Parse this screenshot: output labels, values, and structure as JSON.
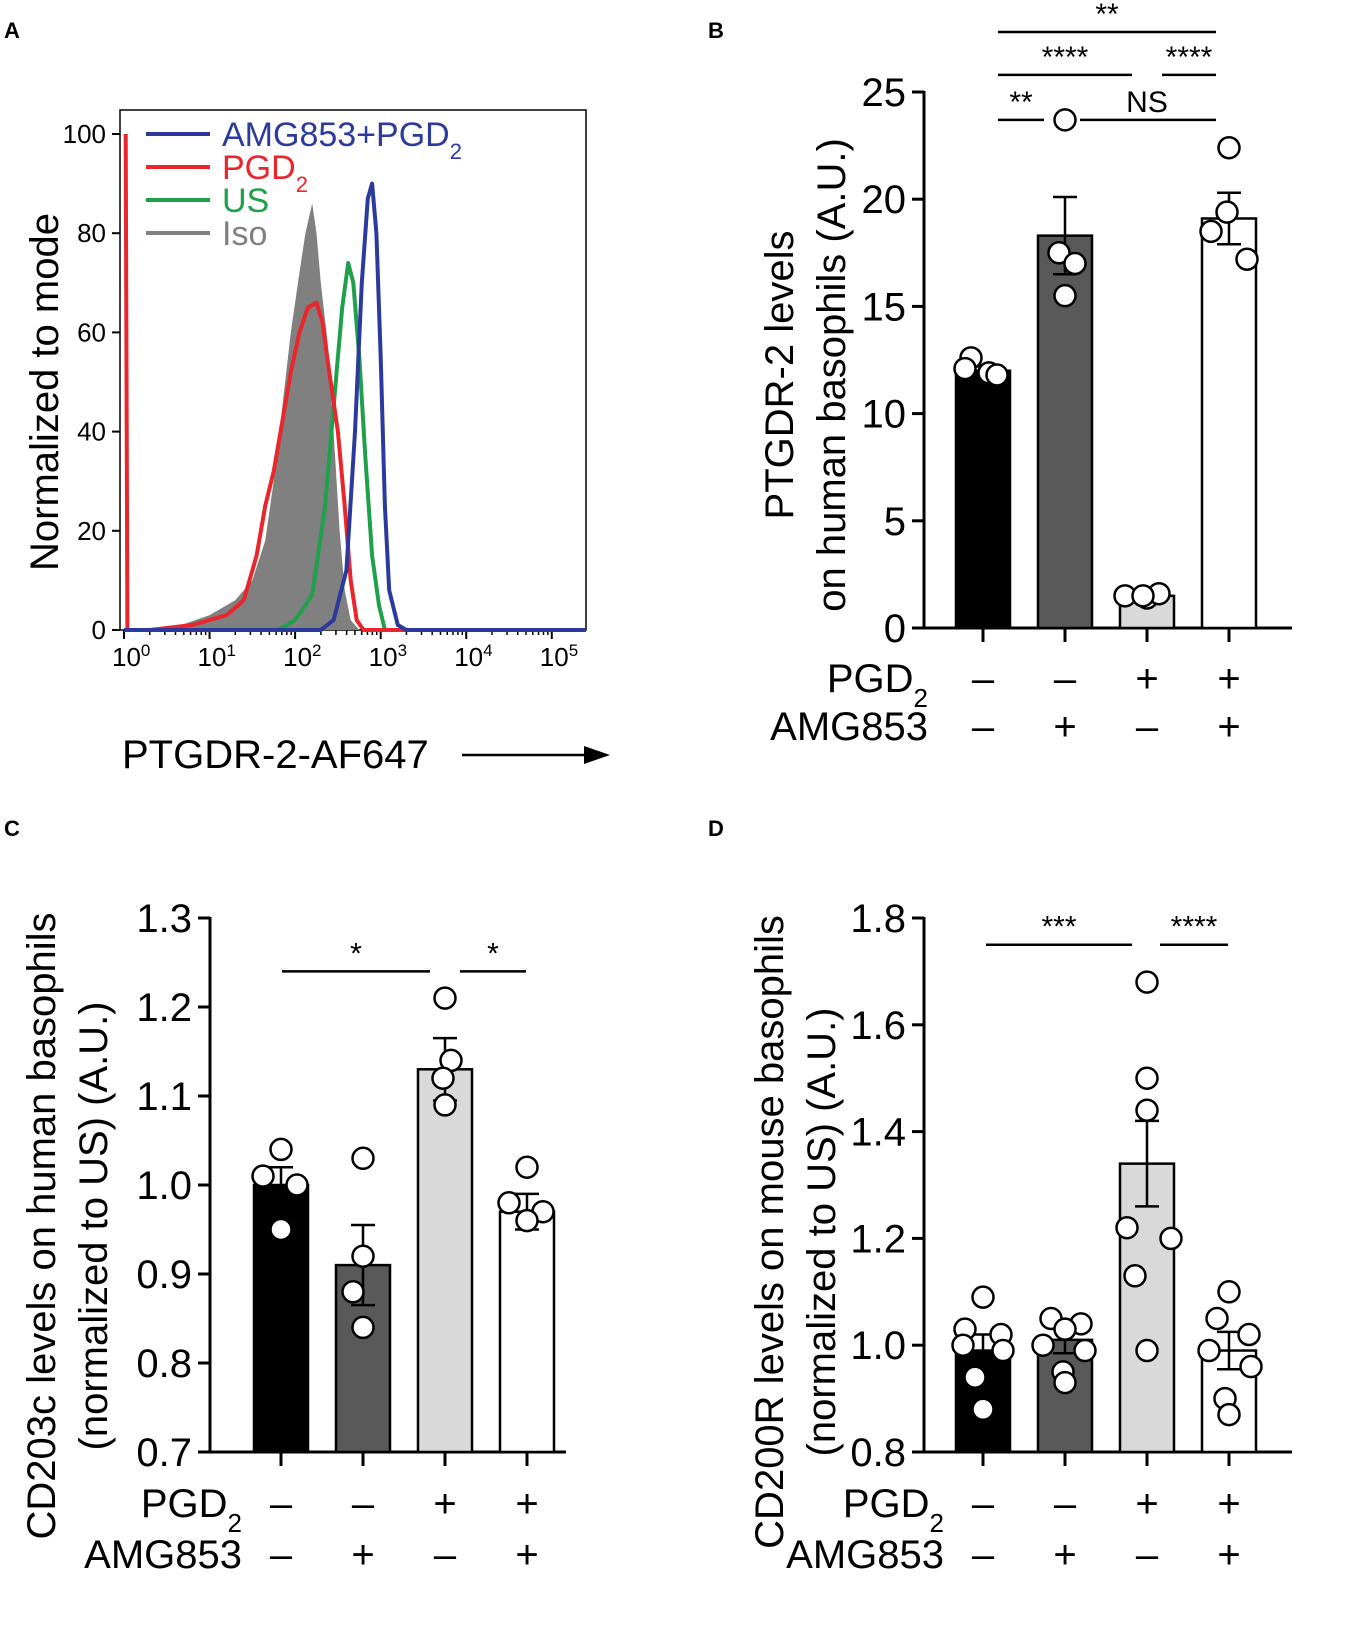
{
  "chart_data": [
    {
      "panel": "A",
      "type": "line",
      "ylabel": "Normalized to mode",
      "xlabel": "PTGDR-2-AF647",
      "ylim": [
        0,
        100
      ],
      "yticks": [
        "0",
        "20",
        "40",
        "60",
        "80",
        "100"
      ],
      "xticks": [
        {
          "base": "10",
          "exp": "0"
        },
        {
          "base": "10",
          "exp": "1"
        },
        {
          "base": "10",
          "exp": "2"
        },
        {
          "base": "10",
          "exp": "3"
        },
        {
          "base": "10",
          "exp": "4"
        },
        {
          "base": "10",
          "exp": "5"
        }
      ],
      "xlog_range": [
        0,
        5.4
      ],
      "series": [
        {
          "name": "AMG853+PGD",
          "sub": "2",
          "color": "#2b3a9c",
          "style": "line",
          "points": [
            [
              0,
              0
            ],
            [
              2.3,
              0
            ],
            [
              2.45,
              2
            ],
            [
              2.6,
              12
            ],
            [
              2.7,
              40
            ],
            [
              2.78,
              70
            ],
            [
              2.85,
              87
            ],
            [
              2.9,
              90
            ],
            [
              2.95,
              80
            ],
            [
              3.0,
              55
            ],
            [
              3.05,
              25
            ],
            [
              3.1,
              8
            ],
            [
              3.2,
              1
            ],
            [
              3.3,
              0
            ],
            [
              5.4,
              0
            ]
          ]
        },
        {
          "name": "PGD",
          "sub": "2",
          "color": "#e8262b",
          "style": "line",
          "points": [
            [
              0.02,
              100
            ],
            [
              0.04,
              0
            ],
            [
              0.3,
              0
            ],
            [
              0.8,
              1
            ],
            [
              1.2,
              3
            ],
            [
              1.4,
              6
            ],
            [
              1.55,
              15
            ],
            [
              1.65,
              25
            ],
            [
              1.75,
              32
            ],
            [
              1.85,
              42
            ],
            [
              1.95,
              52
            ],
            [
              2.05,
              60
            ],
            [
              2.15,
              65
            ],
            [
              2.25,
              66
            ],
            [
              2.32,
              62
            ],
            [
              2.4,
              52
            ],
            [
              2.5,
              40
            ],
            [
              2.58,
              25
            ],
            [
              2.65,
              10
            ],
            [
              2.72,
              2
            ],
            [
              2.8,
              0
            ],
            [
              5.4,
              0
            ]
          ]
        },
        {
          "name": "US",
          "sub": "",
          "color": "#1fa04a",
          "style": "line",
          "points": [
            [
              0,
              0
            ],
            [
              1.8,
              0
            ],
            [
              2.0,
              2
            ],
            [
              2.2,
              7
            ],
            [
              2.35,
              25
            ],
            [
              2.45,
              45
            ],
            [
              2.55,
              65
            ],
            [
              2.62,
              74
            ],
            [
              2.68,
              70
            ],
            [
              2.75,
              55
            ],
            [
              2.82,
              35
            ],
            [
              2.9,
              15
            ],
            [
              2.98,
              5
            ],
            [
              3.05,
              0
            ],
            [
              5.4,
              0
            ]
          ]
        },
        {
          "name": "Iso",
          "sub": "",
          "color": "#808080",
          "style": "fill",
          "points": [
            [
              0,
              0
            ],
            [
              0.5,
              0
            ],
            [
              1.0,
              3
            ],
            [
              1.3,
              6
            ],
            [
              1.5,
              10
            ],
            [
              1.65,
              18
            ],
            [
              1.75,
              30
            ],
            [
              1.85,
              45
            ],
            [
              1.95,
              60
            ],
            [
              2.05,
              72
            ],
            [
              2.12,
              80
            ],
            [
              2.2,
              86
            ],
            [
              2.25,
              80
            ],
            [
              2.3,
              70
            ],
            [
              2.38,
              58
            ],
            [
              2.45,
              40
            ],
            [
              2.52,
              20
            ],
            [
              2.58,
              8
            ],
            [
              2.65,
              2
            ],
            [
              2.75,
              0
            ],
            [
              5.4,
              0
            ]
          ]
        }
      ]
    },
    {
      "panel": "B",
      "type": "bar",
      "ylabel_line1": "PTGDR-2 levels",
      "ylabel_line2": "on human basophils  (A.U.)",
      "ylim": [
        0,
        25
      ],
      "yticks": [
        "0",
        "5",
        "10",
        "15",
        "20",
        "25"
      ],
      "bars": [
        {
          "mean": 12.0,
          "sem": 0.2,
          "fill": "#000000",
          "points": [
            12.6,
            11.9,
            12.1,
            11.8
          ]
        },
        {
          "mean": 18.3,
          "sem": 1.8,
          "fill": "#595959",
          "points": [
            23.7,
            17.5,
            17.0,
            15.5
          ]
        },
        {
          "mean": 1.5,
          "sem": 0.1,
          "fill": "#d9d9d9",
          "points": [
            1.5,
            1.4,
            1.6,
            1.5
          ]
        },
        {
          "mean": 19.1,
          "sem": 1.2,
          "fill": "#ffffff",
          "points": [
            22.4,
            19.4,
            18.5,
            17.2
          ]
        }
      ],
      "significance": [
        {
          "from": 0,
          "to": 3,
          "label": "**",
          "y": 27.8
        },
        {
          "from": 0,
          "to": 2,
          "label": "****",
          "y": 25.8
        },
        {
          "from": 2,
          "to": 3,
          "label": "****",
          "y": 25.8
        },
        {
          "from": 0,
          "to": 1,
          "label": "**",
          "y": 23.7
        },
        {
          "from": 1,
          "to": 3,
          "label": "NS",
          "y": 23.7
        }
      ],
      "conditions": {
        "row1_label": "PGD",
        "row1_sub": "2",
        "row2_label": "AMG853",
        "row1": [
          "–",
          "–",
          "+",
          "+"
        ],
        "row2": [
          "–",
          "+",
          "–",
          "+"
        ]
      }
    },
    {
      "panel": "C",
      "type": "bar",
      "ylabel_line1": "CD203c levels on human basophils",
      "ylabel_line2": "(normalized to US) (A.U.)",
      "ylim": [
        0.7,
        1.3
      ],
      "yticks": [
        "0.7",
        "0.8",
        "0.9",
        "1.0",
        "1.1",
        "1.2",
        "1.3"
      ],
      "bars": [
        {
          "mean": 1.0,
          "sem": 0.02,
          "fill": "#000000",
          "points": [
            1.04,
            1.01,
            1.0,
            0.95
          ]
        },
        {
          "mean": 0.91,
          "sem": 0.045,
          "fill": "#595959",
          "points": [
            1.03,
            0.92,
            0.88,
            0.84
          ]
        },
        {
          "mean": 1.13,
          "sem": 0.035,
          "fill": "#d9d9d9",
          "points": [
            1.21,
            1.14,
            1.12,
            1.09
          ]
        },
        {
          "mean": 0.97,
          "sem": 0.02,
          "fill": "#ffffff",
          "points": [
            1.02,
            0.98,
            0.97,
            0.96
          ]
        }
      ],
      "significance": [
        {
          "from": 0,
          "to": 2,
          "label": "*",
          "y": 1.24
        },
        {
          "from": 2,
          "to": 3,
          "label": "*",
          "y": 1.24
        }
      ],
      "conditions": {
        "row1_label": "PGD",
        "row1_sub": "2",
        "row2_label": "AMG853",
        "row1": [
          "–",
          "–",
          "+",
          "+"
        ],
        "row2": [
          "–",
          "+",
          "–",
          "+"
        ]
      }
    },
    {
      "panel": "D",
      "type": "bar",
      "ylabel_line1": "CD200R levels on mouse basophils",
      "ylabel_line2": "(normalized to US) (A.U.)",
      "ylim": [
        0.8,
        1.8
      ],
      "yticks": [
        "0.8",
        "1.0",
        "1.2",
        "1.4",
        "1.6",
        "1.8"
      ],
      "bars": [
        {
          "mean": 0.99,
          "sem": 0.03,
          "fill": "#000000",
          "points": [
            1.09,
            1.03,
            1.02,
            1.0,
            0.99,
            0.94,
            0.88
          ]
        },
        {
          "mean": 1.01,
          "sem": 0.025,
          "fill": "#595959",
          "points": [
            1.05,
            1.04,
            1.03,
            1.0,
            0.99,
            0.95,
            0.93
          ]
        },
        {
          "mean": 1.34,
          "sem": 0.08,
          "fill": "#d9d9d9",
          "points": [
            1.68,
            1.5,
            1.44,
            1.22,
            1.2,
            1.13,
            0.99
          ]
        },
        {
          "mean": 0.99,
          "sem": 0.035,
          "fill": "#ffffff",
          "points": [
            1.1,
            1.05,
            1.02,
            0.99,
            0.96,
            0.9,
            0.87
          ]
        }
      ],
      "significance": [
        {
          "from": 0,
          "to": 2,
          "label": "***",
          "y": 1.75
        },
        {
          "from": 2,
          "to": 3,
          "label": "****",
          "y": 1.75
        }
      ],
      "conditions": {
        "row1_label": "PGD",
        "row1_sub": "2",
        "row2_label": "AMG853",
        "row1": [
          "–",
          "–",
          "+",
          "+"
        ],
        "row2": [
          "–",
          "+",
          "–",
          "+"
        ]
      }
    }
  ]
}
